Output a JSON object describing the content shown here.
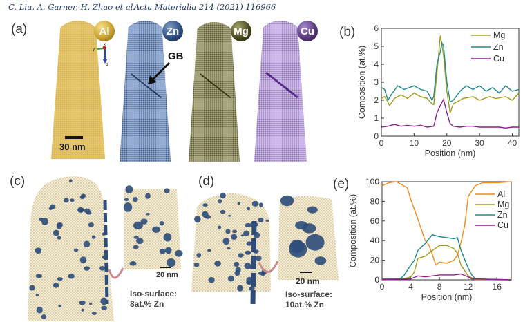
{
  "header": {
    "authors": "C. Liu, A. Garner, H. Zhao et al.",
    "journal": "Acta Materialia 214 (2021) 116966"
  },
  "panels": {
    "a": {
      "label": "(a)",
      "elements": [
        {
          "symbol": "Al",
          "color": "#c9a22a"
        },
        {
          "symbol": "Zn",
          "color": "#2f4f7f"
        },
        {
          "symbol": "Mg",
          "color": "#4a4a22"
        },
        {
          "symbol": "Cu",
          "color": "#5a3a7a"
        }
      ],
      "gb_label": "GB",
      "scale_bar": "30 nm",
      "axes": [
        "x",
        "y",
        "z"
      ]
    },
    "c": {
      "label": "(c)",
      "scale_bar": "20 nm",
      "iso_title": "Iso-surface:",
      "iso_value": "8at.% Zn"
    },
    "d": {
      "label": "(d)",
      "scale_bar": "20 nm",
      "iso_title": "Iso-surface:",
      "iso_value": "10at.% Zn"
    },
    "b": {
      "label": "(b)"
    },
    "e": {
      "label": "(e)"
    }
  },
  "chart_data": [
    {
      "panel": "b",
      "type": "line",
      "xlabel": "Position (nm)",
      "ylabel": "Composition (at.%)",
      "xlim": [
        0,
        42
      ],
      "ylim": [
        0,
        6
      ],
      "xticks": [
        0,
        10,
        20,
        30,
        40
      ],
      "yticks": [
        0,
        1,
        2,
        3,
        4,
        5,
        6
      ],
      "legend": "top-right",
      "grid": false,
      "series": [
        {
          "name": "Mg",
          "color": "#a39a1c",
          "x": [
            0,
            1,
            2,
            2.5,
            4,
            6,
            8,
            10,
            12,
            14,
            15.5,
            16,
            17,
            18,
            19,
            20,
            21,
            22,
            25,
            28,
            30,
            33,
            35,
            38,
            40,
            42
          ],
          "y": [
            2.1,
            2.2,
            1.9,
            1.7,
            2.1,
            2.3,
            2.1,
            2.4,
            2.2,
            2.1,
            1.8,
            1.75,
            3.5,
            5.6,
            4.5,
            2.5,
            1.3,
            1.8,
            2.1,
            2.2,
            2.0,
            2.2,
            2.1,
            2.2,
            2.0,
            2.4
          ]
        },
        {
          "name": "Zn",
          "color": "#1f8a8a",
          "x": [
            0,
            1,
            2,
            3,
            5,
            7,
            10,
            12,
            14,
            15.5,
            16,
            17,
            18,
            18.5,
            19,
            20,
            21,
            22,
            24,
            26,
            28,
            30,
            32,
            34,
            36,
            38,
            40,
            42
          ],
          "y": [
            2.7,
            2.6,
            2.0,
            2.3,
            2.8,
            2.6,
            2.8,
            2.6,
            2.5,
            2.0,
            2.2,
            4.0,
            4.7,
            5.2,
            5.0,
            3.0,
            1.9,
            2.0,
            2.5,
            2.8,
            2.6,
            2.8,
            2.5,
            2.7,
            2.4,
            2.8,
            2.5,
            2.6
          ]
        },
        {
          "name": "Cu",
          "color": "#8a1f8a",
          "x": [
            0,
            2,
            4,
            6,
            8,
            10,
            12,
            14,
            16,
            17,
            18,
            19,
            20,
            21,
            22,
            24,
            26,
            28,
            30,
            34,
            36,
            38,
            40,
            42
          ],
          "y": [
            0.5,
            0.55,
            0.65,
            0.55,
            0.6,
            0.55,
            0.6,
            0.5,
            0.55,
            1.3,
            1.7,
            2.05,
            1.3,
            0.7,
            0.55,
            0.5,
            0.55,
            0.55,
            0.5,
            0.5,
            0.5,
            0.45,
            0.5,
            0.5
          ]
        }
      ]
    },
    {
      "panel": "e",
      "type": "line",
      "xlabel": "Position (nm)",
      "ylabel": "Composition (at.%)",
      "xlim": [
        0,
        18
      ],
      "ylim": [
        0,
        100
      ],
      "xticks": [
        0,
        4,
        8,
        12,
        16
      ],
      "yticks": [
        0,
        20,
        40,
        60,
        80,
        100
      ],
      "legend": "right",
      "grid": false,
      "series": [
        {
          "name": "Al",
          "color": "#f08a1c",
          "x": [
            0,
            1,
            2,
            2.5,
            3,
            3.5,
            4,
            5,
            6,
            6.5,
            7,
            7.5,
            8,
            9,
            10,
            10.5,
            11,
            11.5,
            12,
            13,
            14,
            16,
            18
          ],
          "y": [
            96,
            99,
            100,
            98,
            96,
            94,
            82,
            62,
            40,
            36,
            26,
            15,
            18,
            17,
            20,
            25,
            38,
            55,
            85,
            96,
            99,
            99,
            100
          ]
        },
        {
          "name": "Mg",
          "color": "#a39a1c",
          "x": [
            0,
            3,
            4,
            4.5,
            5,
            6,
            7,
            8,
            9,
            10,
            10.5,
            11,
            12,
            13,
            18
          ],
          "y": [
            1,
            1,
            3,
            8,
            22,
            24,
            30,
            35,
            35,
            32,
            27,
            15,
            4,
            0,
            0
          ]
        },
        {
          "name": "Zn",
          "color": "#1f8a8a",
          "x": [
            0,
            2.5,
            3,
            4,
            4.5,
            5,
            6,
            7,
            8,
            9,
            10,
            10.5,
            11,
            12,
            12.5,
            13,
            18
          ],
          "y": [
            1,
            1,
            4,
            15,
            20,
            30,
            37,
            46,
            44,
            43,
            42,
            43,
            30,
            12,
            5,
            1,
            0
          ]
        },
        {
          "name": "Cu",
          "color": "#8a1f8a",
          "x": [
            0,
            4,
            5,
            6,
            7,
            8,
            9,
            10,
            11,
            12,
            12.5,
            18
          ],
          "y": [
            0,
            1,
            4,
            3,
            4,
            5,
            5,
            5,
            6,
            3,
            1,
            0
          ]
        }
      ]
    }
  ]
}
